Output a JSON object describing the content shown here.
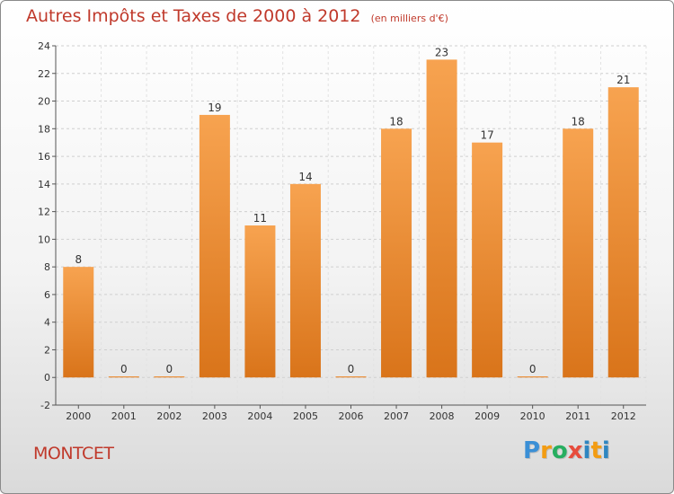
{
  "title": "Autres Impôts et Taxes de 2000 à 2012",
  "unit_note": "(en milliers d'€)",
  "commune": "MONTCET",
  "logo": {
    "letters": [
      "P",
      "r",
      "o",
      "x",
      "i",
      "t",
      "i"
    ],
    "colors": [
      "#3a8fd6",
      "#f39c12",
      "#27ae60",
      "#e74c3c",
      "#2e86c1",
      "#f39c12",
      "#2e86c1"
    ]
  },
  "chart_data": {
    "type": "bar",
    "categories": [
      "2000",
      "2001",
      "2002",
      "2003",
      "2004",
      "2005",
      "2006",
      "2007",
      "2008",
      "2009",
      "2010",
      "2011",
      "2012"
    ],
    "values": [
      8,
      0,
      0,
      19,
      11,
      14,
      0,
      18,
      23,
      17,
      0,
      18,
      21
    ],
    "ylim": [
      -2,
      24
    ],
    "yticks": [
      -2,
      0,
      2,
      4,
      6,
      8,
      10,
      12,
      14,
      16,
      18,
      20,
      22,
      24
    ],
    "bar_color": "#f0913a",
    "grid": "horizontal"
  }
}
